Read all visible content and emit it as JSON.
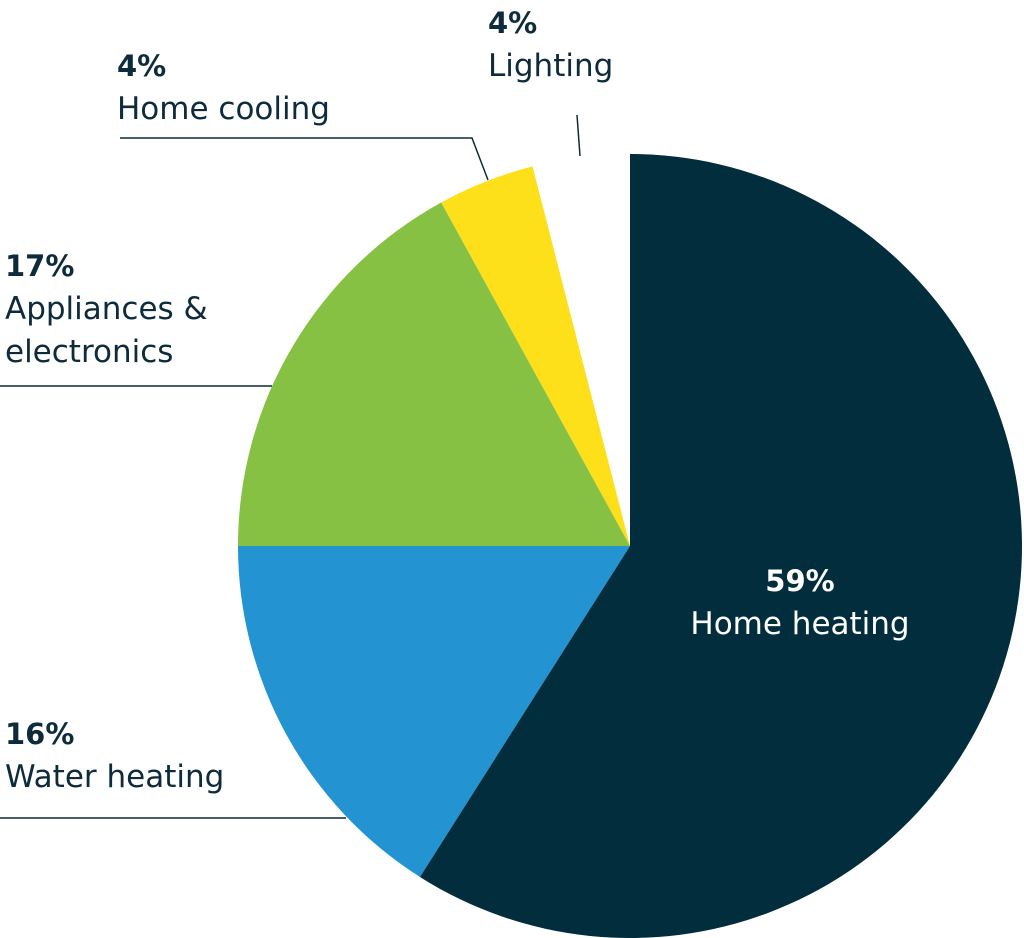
{
  "chart_data": {
    "type": "pie",
    "categories": [
      "Home heating",
      "Water heating",
      "Appliances & electronics",
      "Home cooling",
      "Lighting"
    ],
    "values": [
      59,
      16,
      17,
      4,
      4
    ],
    "value_labels": [
      "59%",
      "16%",
      "17%",
      "4%",
      "4%"
    ],
    "colors": [
      "#022d3d",
      "#2493d1",
      "#86c143",
      "#fde01a",
      "#ffffff"
    ]
  }
}
